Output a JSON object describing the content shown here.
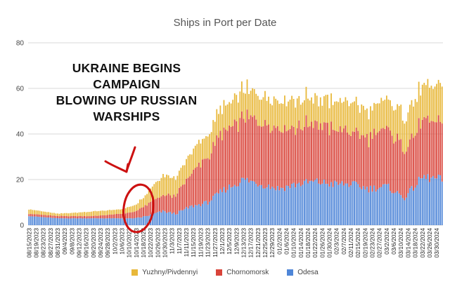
{
  "chart_data": {
    "type": "bar",
    "stacked": true,
    "title": "Ships in Port per Date",
    "xlabel": "",
    "ylabel": "",
    "ylim": [
      0,
      80
    ],
    "yticks": [
      0,
      20,
      40,
      60,
      80
    ],
    "grid": true,
    "legend_position": "bottom",
    "x_tick_labels": [
      "08/15/2023",
      "08/19/2023",
      "08/23/2023",
      "08/27/2023",
      "08/31/2023",
      "09/4/2023",
      "09/8/2023",
      "09/12/2023",
      "09/16/2023",
      "09/20/2023",
      "09/24/2023",
      "09/28/2023",
      "10/2/2023",
      "10/6/2023",
      "10/10/2023",
      "10/14/2023",
      "10/18/2023",
      "10/22/2023",
      "10/26/2023",
      "10/30/2023",
      "11/3/2023",
      "11/7/2023",
      "11/11/2023",
      "11/15/2023",
      "11/19/2023",
      "11/23/2023",
      "11/27/2023",
      "12/1/2023",
      "12/5/2023",
      "12/9/2023",
      "12/13/2023",
      "12/17/2023",
      "12/21/2023",
      "12/25/2023",
      "12/29/2023",
      "01/2/2024",
      "01/6/2024",
      "01/10/2024",
      "01/14/2024",
      "01/18/2024",
      "01/22/2024",
      "01/26/2024",
      "01/30/2024",
      "02/3/2024",
      "02/7/2024",
      "02/11/2024",
      "02/15/2024",
      "02/19/2024",
      "02/23/2024",
      "02/27/2024",
      "03/2/2024",
      "03/6/2024",
      "03/10/2024",
      "03/14/2024",
      "03/18/2024",
      "03/22/2024",
      "03/26/2024",
      "03/30/2024"
    ],
    "bars_per_label": 4,
    "series": [
      {
        "name": "Yuzhny/Pivdennyi",
        "color": "#E8B83A",
        "anchors": [
          [
            0,
            2
          ],
          [
            16,
            1
          ],
          [
            36,
            2
          ],
          [
            52,
            2
          ],
          [
            60,
            3
          ],
          [
            66,
            5
          ],
          [
            70,
            7
          ],
          [
            75,
            9
          ],
          [
            82,
            8
          ],
          [
            90,
            9
          ],
          [
            100,
            10
          ],
          [
            108,
            11
          ],
          [
            120,
            12
          ],
          [
            130,
            12
          ],
          [
            140,
            12
          ],
          [
            150,
            12
          ],
          [
            160,
            11
          ],
          [
            170,
            12
          ],
          [
            180,
            13
          ],
          [
            190,
            12
          ],
          [
            200,
            13
          ],
          [
            210,
            14
          ],
          [
            220,
            15
          ],
          [
            231,
            16
          ]
        ]
      },
      {
        "name": "Chornomorsk",
        "color": "#D9443A",
        "anchors": [
          [
            0,
            1
          ],
          [
            16,
            1
          ],
          [
            36,
            1
          ],
          [
            52,
            2
          ],
          [
            60,
            3
          ],
          [
            66,
            5
          ],
          [
            70,
            6
          ],
          [
            75,
            7
          ],
          [
            82,
            8
          ],
          [
            90,
            14
          ],
          [
            100,
            20
          ],
          [
            108,
            25
          ],
          [
            120,
            27
          ],
          [
            130,
            28
          ],
          [
            140,
            27
          ],
          [
            150,
            25
          ],
          [
            160,
            26
          ],
          [
            170,
            24
          ],
          [
            180,
            23
          ],
          [
            190,
            22
          ],
          [
            200,
            25
          ],
          [
            210,
            22
          ],
          [
            220,
            24
          ],
          [
            231,
            25
          ]
        ]
      },
      {
        "name": "Odesa",
        "color": "#4F86D8",
        "anchors": [
          [
            0,
            4
          ],
          [
            16,
            3
          ],
          [
            36,
            3
          ],
          [
            52,
            3
          ],
          [
            60,
            3
          ],
          [
            66,
            4
          ],
          [
            70,
            5
          ],
          [
            75,
            6
          ],
          [
            82,
            5
          ],
          [
            90,
            8
          ],
          [
            100,
            10
          ],
          [
            108,
            15
          ],
          [
            120,
            20
          ],
          [
            130,
            18
          ],
          [
            140,
            16
          ],
          [
            150,
            18
          ],
          [
            160,
            19
          ],
          [
            170,
            18
          ],
          [
            180,
            18
          ],
          [
            190,
            16
          ],
          [
            200,
            17
          ],
          [
            210,
            12
          ],
          [
            220,
            21
          ],
          [
            231,
            20
          ]
        ]
      }
    ],
    "total_bars": 232
  },
  "annotation": {
    "lines": [
      "UKRAINE BEGINS",
      "CAMPAIGN",
      "BLOWING UP RUSSIAN",
      "WARSHIPS"
    ]
  }
}
